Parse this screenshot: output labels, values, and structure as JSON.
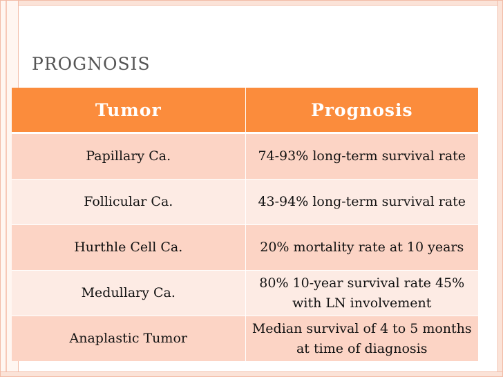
{
  "slide": {
    "title": "PROGNOSIS"
  },
  "table": {
    "headers": {
      "tumor": "Tumor",
      "prognosis": "Prognosis"
    },
    "rows": [
      {
        "tumor": "Papillary Ca.",
        "prognosis": "74-93% long-term survival rate"
      },
      {
        "tumor": "Follicular Ca.",
        "prognosis": "43-94% long-term survival rate"
      },
      {
        "tumor": "Hurthle Cell Ca.",
        "prognosis": "20% mortality  rate at 10 years"
      },
      {
        "tumor": "Medullary Ca.",
        "prognosis": "80% 10-year survival rate 45% with LN involvement"
      },
      {
        "tumor": "Anaplastic Tumor",
        "prognosis": "Median survival of 4 to 5 months at time of diagnosis"
      }
    ]
  },
  "colors": {
    "header_bg": "#fb8c3c",
    "row_dark": "#fcd4c5",
    "row_light": "#fdebe4",
    "frame": "#f2bba6"
  }
}
